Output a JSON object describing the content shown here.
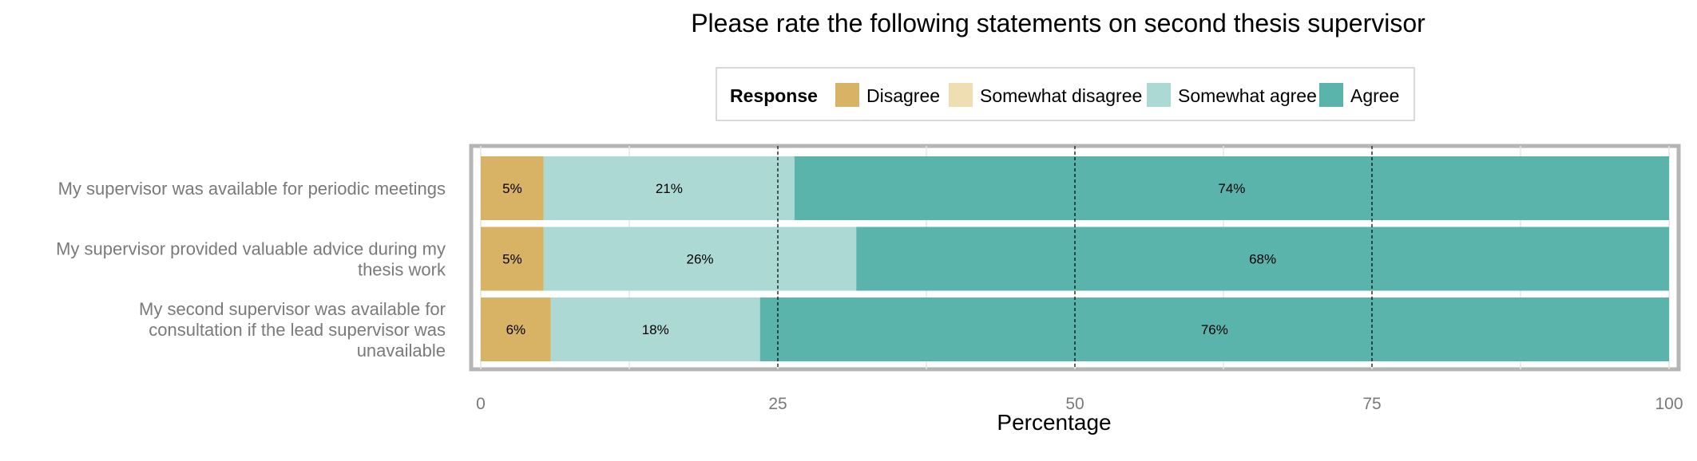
{
  "chart_data": {
    "type": "bar",
    "orientation": "horizontal",
    "stacked": true,
    "title": "Please rate the following statements on second thesis supervisor",
    "xlabel": "Percentage",
    "ylabel": "",
    "xlim": [
      0,
      100
    ],
    "x_ticks": [
      0,
      25,
      50,
      75,
      100
    ],
    "reference_lines": [
      25,
      50,
      75
    ],
    "legend": {
      "title": "Response",
      "position": "top",
      "entries": [
        "Disagree",
        "Somewhat disagree",
        "Somewhat agree",
        "Agree"
      ]
    },
    "colors": {
      "Disagree": "#d8b365",
      "Somewhat disagree": "#f0deb3",
      "Somewhat agree": "#add9d4",
      "Agree": "#5ab4ac"
    },
    "categories": [
      "My supervisor was available for periodic meetings",
      "My supervisor provided valuable advice during my thesis work",
      "My second supervisor was available for consultation if the lead supervisor was unavailable"
    ],
    "category_lines": [
      [
        "My supervisor was available for periodic meetings"
      ],
      [
        "My supervisor provided valuable advice during my",
        "thesis work"
      ],
      [
        "My second supervisor was available for",
        "consultation if the lead supervisor was",
        "unavailable"
      ]
    ],
    "series": [
      {
        "name": "Disagree",
        "values": [
          5.3,
          5.3,
          5.9
        ],
        "labels": [
          "5%",
          "5%",
          "6%"
        ]
      },
      {
        "name": "Somewhat disagree",
        "values": [
          0,
          0,
          0
        ],
        "labels": [
          "",
          "",
          ""
        ]
      },
      {
        "name": "Somewhat agree",
        "values": [
          21.1,
          26.3,
          17.6
        ],
        "labels": [
          "21%",
          "26%",
          "18%"
        ]
      },
      {
        "name": "Agree",
        "values": [
          73.6,
          68.4,
          76.5
        ],
        "labels": [
          "74%",
          "68%",
          "76%"
        ]
      }
    ]
  }
}
